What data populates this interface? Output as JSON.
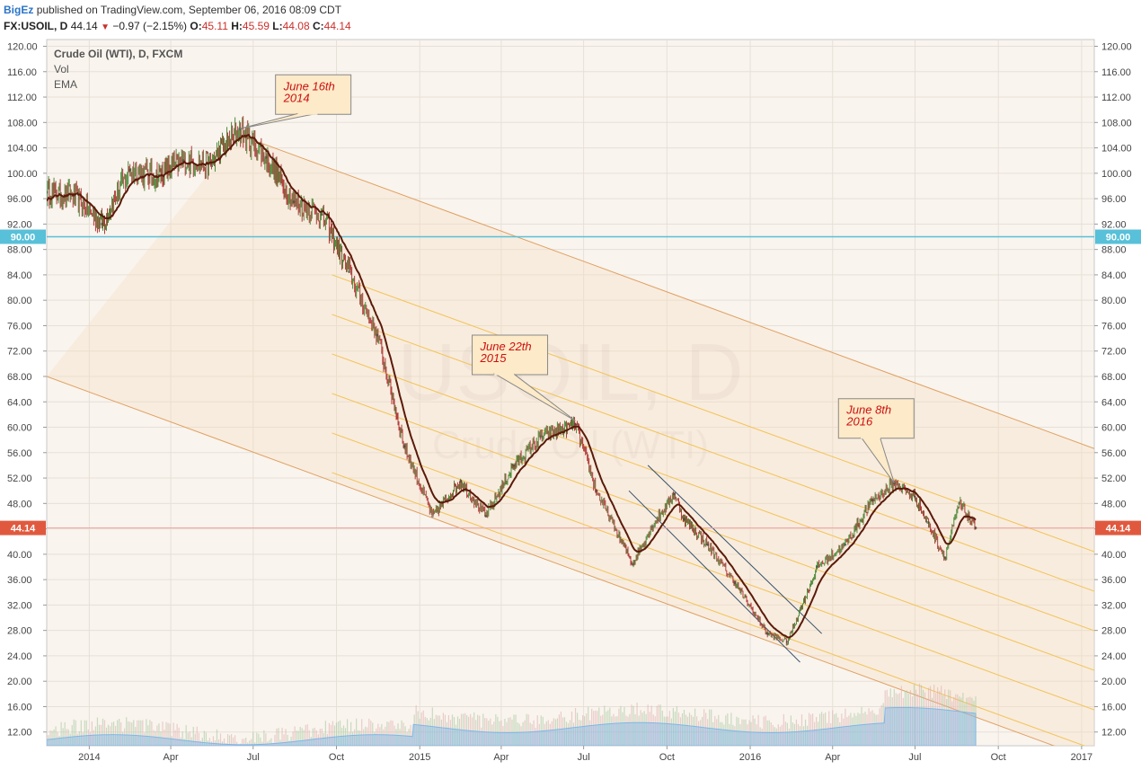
{
  "header": {
    "publisher": "BigEz",
    "published_text": "published on TradingView.com, September 06, 2016 08:09 CDT",
    "symbol": "FX:USOIL, D",
    "last": "44.14",
    "change": "−0.97 (−2.15%)",
    "o_label": "O:",
    "o": "45.11",
    "h_label": "H:",
    "h": "45.59",
    "l_label": "L:",
    "l": "44.08",
    "c_label": "C:",
    "c": "44.14"
  },
  "legend": {
    "title": "Crude Oil (WTI), D, FXCM",
    "vol": "Vol",
    "ema": "EMA"
  },
  "watermark": {
    "line1": "USOIL, D",
    "line2": "Crude Oil (WTI)"
  },
  "colors": {
    "ema": "#5a1a0a",
    "candle_up": "#4e8a3a",
    "candle_down": "#b03a3a",
    "channel_outer": "#e0a060",
    "channel_inner": "#f3c45a",
    "line_90": "#58c0d8",
    "price_line": "#f0a0a0",
    "price_tag": "#e0593e",
    "volume": "#7fb6e8",
    "callout_bg": "#fdeac8",
    "callout_text": "#cc1010"
  },
  "chart_data": {
    "type": "line",
    "title": "Crude Oil (WTI), D, FXCM",
    "x": [
      "2013-11-15",
      "2013-12-15",
      "2014-01-15",
      "2014-02-15",
      "2014-03-15",
      "2014-04-15",
      "2014-05-15",
      "2014-06-16",
      "2014-07-15",
      "2014-08-15",
      "2014-09-15",
      "2014-10-15",
      "2014-11-15",
      "2014-12-15",
      "2015-01-15",
      "2015-02-15",
      "2015-03-15",
      "2015-04-15",
      "2015-05-15",
      "2015-06-22",
      "2015-07-15",
      "2015-08-24",
      "2015-09-15",
      "2015-10-09",
      "2015-10-20",
      "2015-11-15",
      "2015-12-15",
      "2016-01-20",
      "2016-02-11",
      "2016-03-15",
      "2016-04-15",
      "2016-05-15",
      "2016-06-08",
      "2016-07-01",
      "2016-07-15",
      "2016-08-03",
      "2016-08-19",
      "2016-09-06"
    ],
    "series": [
      {
        "name": "",
        "values": [
          97.0,
          96.5,
          92.0,
          100.5,
          99.5,
          102.0,
          101.5,
          107.0,
          102.5,
          95.5,
          93.5,
          84.5,
          74.5,
          57.0,
          46.0,
          51.5,
          46.0,
          54.0,
          58.5,
          60.5,
          50.0,
          38.5,
          44.5,
          49.5,
          45.5,
          41.5,
          35.5,
          27.5,
          26.2,
          38.0,
          41.5,
          48.5,
          51.2,
          49.0,
          45.0,
          39.5,
          48.0,
          44.14
        ]
      }
    ],
    "ylim": [
      9.0,
      121.0
    ],
    "y_ticks": [
      "120.00",
      "116.00",
      "112.00",
      "108.00",
      "104.00",
      "100.00",
      "96.00",
      "92.00",
      "88.00",
      "84.00",
      "80.00",
      "76.00",
      "72.00",
      "68.00",
      "64.00",
      "60.00",
      "56.00",
      "52.00",
      "48.00",
      "44.00",
      "40.00",
      "36.00",
      "32.00",
      "28.00",
      "24.00",
      "20.00",
      "16.00",
      "12.00"
    ],
    "x_tick_labels": [
      {
        "label": "2014",
        "date": "2014-01-01"
      },
      {
        "label": "Apr",
        "date": "2014-04-01"
      },
      {
        "label": "Jul",
        "date": "2014-07-01"
      },
      {
        "label": "Oct",
        "date": "2014-10-01"
      },
      {
        "label": "2015",
        "date": "2015-01-01"
      },
      {
        "label": "Apr",
        "date": "2015-04-01"
      },
      {
        "label": "Jul",
        "date": "2015-07-01"
      },
      {
        "label": "Oct",
        "date": "2015-10-01"
      },
      {
        "label": "2016",
        "date": "2016-01-01"
      },
      {
        "label": "Apr",
        "date": "2016-04-01"
      },
      {
        "label": "Jul",
        "date": "2016-07-01"
      },
      {
        "label": "Oct",
        "date": "2016-10-01"
      },
      {
        "label": "2017",
        "date": "2017-01-01"
      }
    ],
    "horizontal_line": {
      "value": 90.0,
      "label": "90.00"
    },
    "last_price": {
      "value": 44.14,
      "label": "44.14"
    },
    "annotations": [
      {
        "line1": "June 16th",
        "line2": "2014",
        "date": "2014-06-16",
        "value": 107.0
      },
      {
        "line1": "June 22th",
        "line2": "2015",
        "date": "2015-06-22",
        "value": 61.0
      },
      {
        "line1": "June 8th",
        "line2": "2016",
        "date": "2016-06-08",
        "value": 51.2
      }
    ],
    "grid": true
  }
}
